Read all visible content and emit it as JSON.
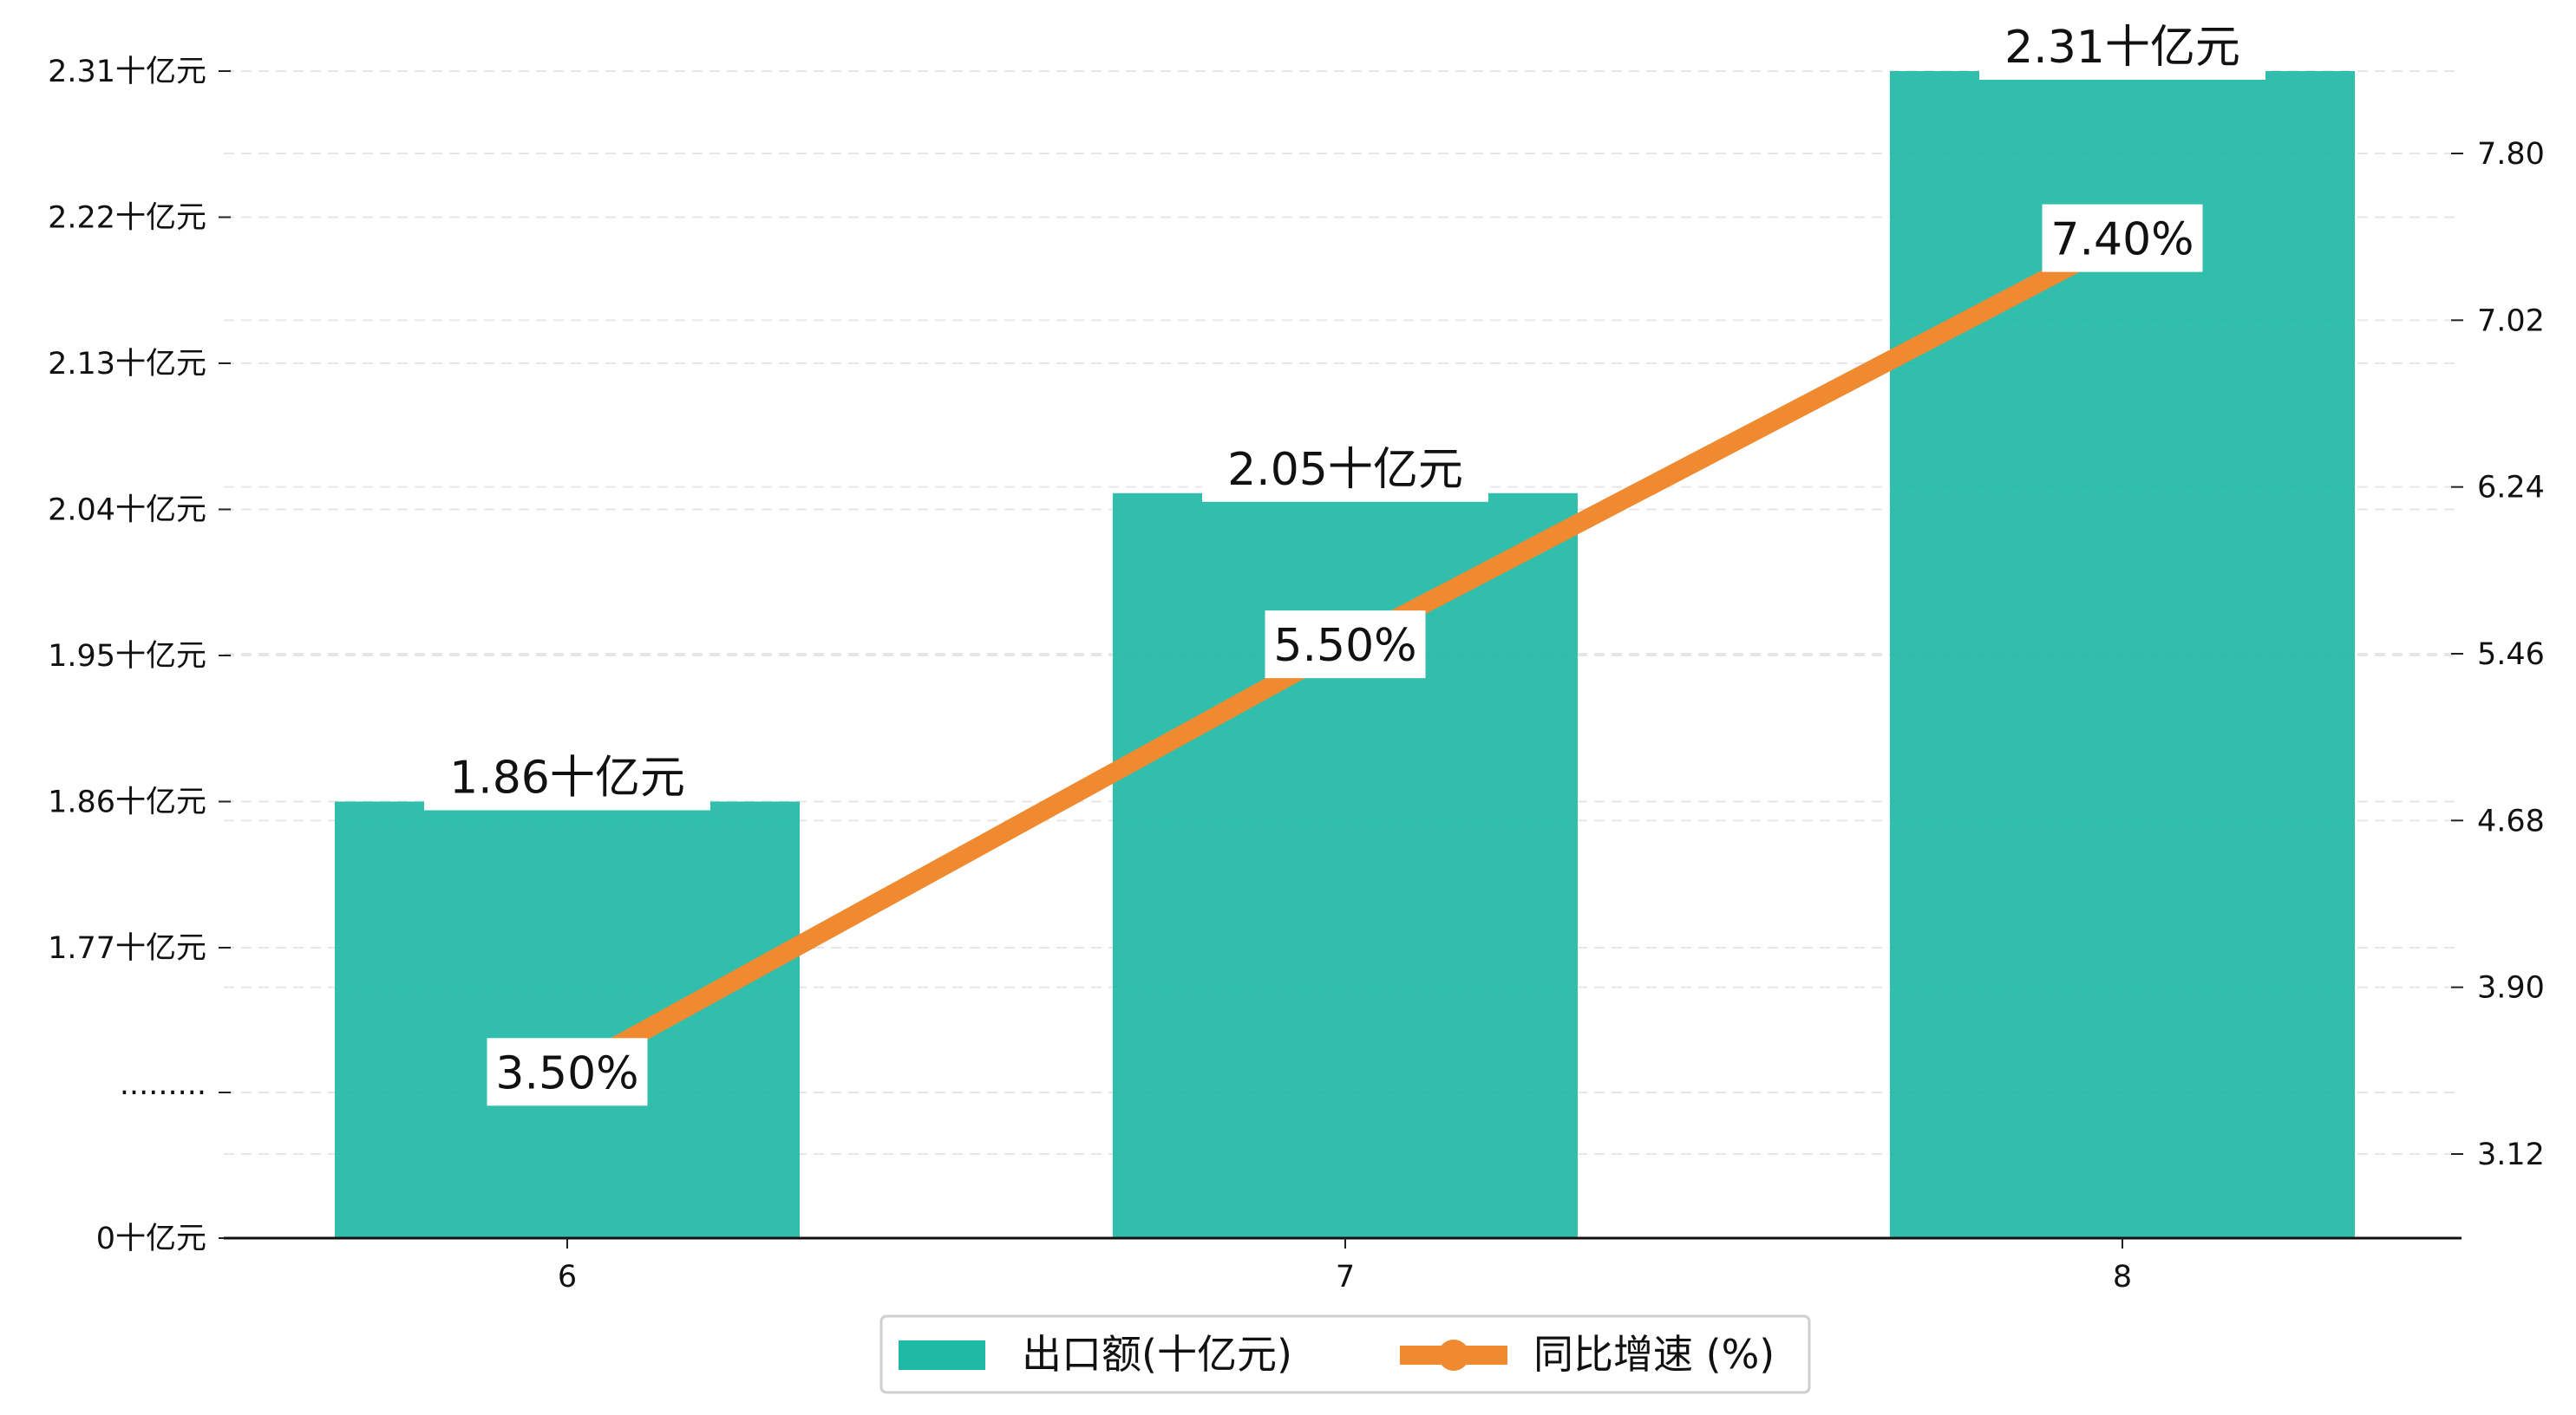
{
  "chart_data": {
    "type": "bar",
    "categories": [
      "6",
      "7",
      "8"
    ],
    "series": [
      {
        "name": "出口额(十亿元)",
        "type": "bar",
        "values": [
          1.86,
          2.05,
          2.31
        ],
        "value_labels": [
          "1.86十亿元",
          "2.05十亿元",
          "2.31十亿元"
        ],
        "color": "#20B8A6"
      },
      {
        "name": "同比增速 (%)",
        "type": "line",
        "axis": "right",
        "values": [
          3.5,
          5.5,
          7.4
        ],
        "value_labels": [
          "3.50%",
          "5.50%",
          "7.40%"
        ],
        "color": "#F08A30"
      }
    ],
    "y_left": {
      "axis_break": true,
      "ticks": [
        {
          "label": "0十亿元"
        },
        {
          "label": "·········"
        },
        {
          "value": 1.77,
          "label": "1.77十亿元"
        },
        {
          "value": 1.86,
          "label": "1.86十亿元"
        },
        {
          "value": 1.95,
          "label": "1.95十亿元"
        },
        {
          "value": 2.04,
          "label": "2.04十亿元"
        },
        {
          "value": 2.13,
          "label": "2.13十亿元"
        },
        {
          "value": 2.22,
          "label": "2.22十亿元"
        },
        {
          "value": 2.31,
          "label": "2.31十亿元"
        }
      ]
    },
    "y_right": {
      "ylim": [
        2.7,
        8.15
      ],
      "ticks": [
        {
          "value": 3.12,
          "label": "3.12"
        },
        {
          "value": 3.9,
          "label": "3.90"
        },
        {
          "value": 4.68,
          "label": "4.68"
        },
        {
          "value": 5.46,
          "label": "5.46"
        },
        {
          "value": 6.24,
          "label": "6.24"
        },
        {
          "value": 7.02,
          "label": "7.02"
        },
        {
          "value": 7.8,
          "label": "7.80"
        }
      ]
    },
    "grid": "horizontal-dashed",
    "legend_position": "bottom-center",
    "xlabel": "",
    "ylabel": ""
  }
}
